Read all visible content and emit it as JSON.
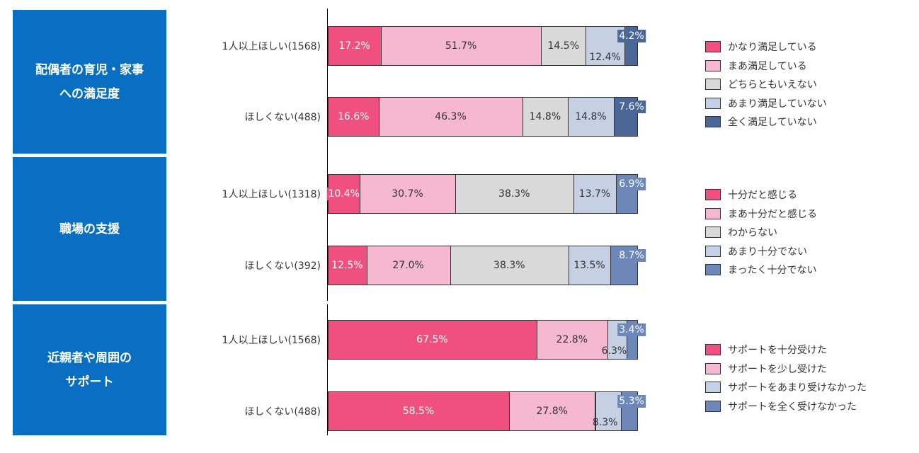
{
  "chart_data": {
    "type": "bar",
    "orientation": "horizontal",
    "stacked": true,
    "xlim": [
      0,
      100
    ],
    "unit": "%",
    "groups": [
      {
        "title": "配偶者の育児・家事\nへの満足度",
        "legend": [
          "かなり満足している",
          "まあ満足している",
          "どちらともいえない",
          "あまり満足していない",
          "全く満足していない"
        ],
        "colors": [
          "#f0507f",
          "#f5b8d0",
          "#d9d9d9",
          "#c5d0e3",
          "#4a6797"
        ],
        "rows": [
          {
            "label": "1人以上ほしい(1568)",
            "values": [
              17.2,
              51.7,
              14.5,
              12.4,
              4.2
            ]
          },
          {
            "label": "ほしくない(488)",
            "values": [
              16.6,
              46.3,
              14.8,
              14.8,
              7.6
            ]
          }
        ]
      },
      {
        "title": "職場の支援",
        "legend": [
          "十分だと感じる",
          "まあ十分だと感じる",
          "わからない",
          "あまり十分でない",
          "まったく十分でない"
        ],
        "colors": [
          "#f0507f",
          "#f5b8d0",
          "#d9d9d9",
          "#c5d0e3",
          "#6c87b8"
        ],
        "rows": [
          {
            "label": "1人以上ほしい(1318)",
            "values": [
              10.4,
              30.7,
              38.3,
              13.7,
              6.9
            ]
          },
          {
            "label": "ほしくない(392)",
            "values": [
              12.5,
              27.0,
              38.3,
              13.5,
              8.7
            ]
          }
        ]
      },
      {
        "title": "近親者や周囲の\nサポート",
        "legend": [
          "サポートを十分受けた",
          "サポートを少し受けた",
          "サポートをあまり受けなかった",
          "サポートを全く受けなかった"
        ],
        "colors": [
          "#f0507f",
          "#f5b8d0",
          "#c5d0e3",
          "#6c87b8"
        ],
        "rows": [
          {
            "label": "1人以上ほしい(1568)",
            "values": [
              67.5,
              22.8,
              6.3,
              3.4
            ]
          },
          {
            "label": "ほしくない(488)",
            "values": [
              58.5,
              27.8,
              8.3,
              5.3
            ]
          }
        ]
      }
    ]
  }
}
